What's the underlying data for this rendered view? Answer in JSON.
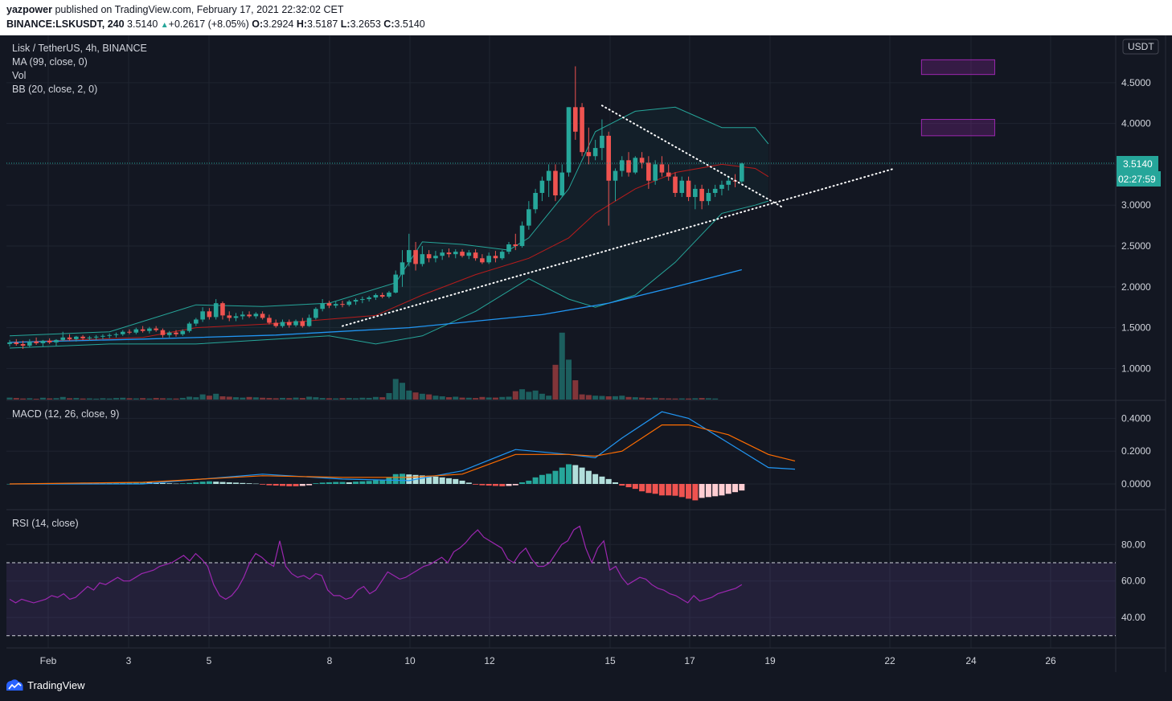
{
  "header": {
    "author": "yazpower",
    "published_text": "published on TradingView.com, February 17, 2021 22:32:02 CET",
    "symbol": "BINANCE:LSKUSDT, 240",
    "last": "3.5140",
    "change": "+0.2617 (+8.05%)",
    "o_label": "O:",
    "o_value": "3.2924",
    "h_label": "H:",
    "h_value": "3.5187",
    "l_label": "L:",
    "l_value": "3.2653",
    "c_label": "C:",
    "c_value": "3.5140"
  },
  "legend": {
    "title": "Lisk / TetherUS, 4h, BINANCE",
    "ma": "MA (99, close, 0)",
    "vol": "Vol",
    "bb": "BB (20, close, 2, 0)",
    "macd": "MACD (12, 26, close, 9)",
    "rsi": "RSI (14, close)"
  },
  "price_scale": {
    "currency": "USDT",
    "ticks": [
      "4.5000",
      "4.0000",
      "3.5000",
      "3.0000",
      "2.5000",
      "2.0000",
      "1.5000",
      "1.0000"
    ],
    "current_price": "3.5140",
    "countdown": "02:27:59"
  },
  "macd_scale": {
    "ticks": [
      "0.4000",
      "0.2000",
      "0.0000"
    ]
  },
  "rsi_scale": {
    "ticks": [
      "80.00",
      "60.00",
      "40.00"
    ]
  },
  "time_axis": {
    "labels": [
      "Feb",
      "3",
      "5",
      "8",
      "10",
      "12",
      "15",
      "17",
      "19",
      "22",
      "24",
      "26"
    ]
  },
  "brand": "TradingView",
  "colors": {
    "up": "#26a69a",
    "down": "#ef5350",
    "ma": "#2196f3",
    "bb": "#26a69a",
    "macd": "#2196f3",
    "signal": "#ff6d00",
    "rsi": "#9c27b0",
    "bg": "#131722"
  },
  "chart_data": {
    "type": "candlestick",
    "symbol": "LSKUSDT",
    "interval": "4h",
    "price_range": [
      0.6,
      5.0
    ],
    "candles": [
      {
        "o": 1.3,
        "h": 1.35,
        "l": 1.27,
        "c": 1.32
      },
      {
        "o": 1.32,
        "h": 1.36,
        "l": 1.28,
        "c": 1.3
      },
      {
        "o": 1.3,
        "h": 1.34,
        "l": 1.24,
        "c": 1.28
      },
      {
        "o": 1.28,
        "h": 1.36,
        "l": 1.26,
        "c": 1.33
      },
      {
        "o": 1.33,
        "h": 1.38,
        "l": 1.29,
        "c": 1.31
      },
      {
        "o": 1.31,
        "h": 1.35,
        "l": 1.27,
        "c": 1.34
      },
      {
        "o": 1.34,
        "h": 1.37,
        "l": 1.3,
        "c": 1.32
      },
      {
        "o": 1.32,
        "h": 1.36,
        "l": 1.28,
        "c": 1.35
      },
      {
        "o": 1.35,
        "h": 1.45,
        "l": 1.33,
        "c": 1.38
      },
      {
        "o": 1.38,
        "h": 1.42,
        "l": 1.34,
        "c": 1.36
      },
      {
        "o": 1.36,
        "h": 1.4,
        "l": 1.33,
        "c": 1.39
      },
      {
        "o": 1.39,
        "h": 1.41,
        "l": 1.35,
        "c": 1.37
      },
      {
        "o": 1.37,
        "h": 1.4,
        "l": 1.34,
        "c": 1.38
      },
      {
        "o": 1.38,
        "h": 1.41,
        "l": 1.35,
        "c": 1.39
      },
      {
        "o": 1.39,
        "h": 1.42,
        "l": 1.36,
        "c": 1.4
      },
      {
        "o": 1.4,
        "h": 1.43,
        "l": 1.37,
        "c": 1.41
      },
      {
        "o": 1.41,
        "h": 1.44,
        "l": 1.38,
        "c": 1.42
      },
      {
        "o": 1.42,
        "h": 1.47,
        "l": 1.4,
        "c": 1.45
      },
      {
        "o": 1.45,
        "h": 1.48,
        "l": 1.42,
        "c": 1.44
      },
      {
        "o": 1.44,
        "h": 1.5,
        "l": 1.42,
        "c": 1.48
      },
      {
        "o": 1.48,
        "h": 1.52,
        "l": 1.44,
        "c": 1.46
      },
      {
        "o": 1.46,
        "h": 1.51,
        "l": 1.43,
        "c": 1.49
      },
      {
        "o": 1.49,
        "h": 1.52,
        "l": 1.45,
        "c": 1.47
      },
      {
        "o": 1.47,
        "h": 1.49,
        "l": 1.38,
        "c": 1.41
      },
      {
        "o": 1.41,
        "h": 1.46,
        "l": 1.38,
        "c": 1.44
      },
      {
        "o": 1.44,
        "h": 1.47,
        "l": 1.39,
        "c": 1.42
      },
      {
        "o": 1.42,
        "h": 1.48,
        "l": 1.4,
        "c": 1.46
      },
      {
        "o": 1.46,
        "h": 1.57,
        "l": 1.44,
        "c": 1.55
      },
      {
        "o": 1.55,
        "h": 1.62,
        "l": 1.52,
        "c": 1.6
      },
      {
        "o": 1.6,
        "h": 1.75,
        "l": 1.57,
        "c": 1.7
      },
      {
        "o": 1.7,
        "h": 1.74,
        "l": 1.6,
        "c": 1.63
      },
      {
        "o": 1.63,
        "h": 1.85,
        "l": 1.6,
        "c": 1.8
      },
      {
        "o": 1.8,
        "h": 1.82,
        "l": 1.6,
        "c": 1.65
      },
      {
        "o": 1.65,
        "h": 1.7,
        "l": 1.58,
        "c": 1.62
      },
      {
        "o": 1.62,
        "h": 1.68,
        "l": 1.58,
        "c": 1.64
      },
      {
        "o": 1.64,
        "h": 1.7,
        "l": 1.6,
        "c": 1.66
      },
      {
        "o": 1.66,
        "h": 1.7,
        "l": 1.62,
        "c": 1.64
      },
      {
        "o": 1.64,
        "h": 1.69,
        "l": 1.61,
        "c": 1.67
      },
      {
        "o": 1.67,
        "h": 1.7,
        "l": 1.6,
        "c": 1.62
      },
      {
        "o": 1.62,
        "h": 1.66,
        "l": 1.54,
        "c": 1.56
      },
      {
        "o": 1.56,
        "h": 1.6,
        "l": 1.5,
        "c": 1.52
      },
      {
        "o": 1.52,
        "h": 1.6,
        "l": 1.5,
        "c": 1.57
      },
      {
        "o": 1.57,
        "h": 1.6,
        "l": 1.5,
        "c": 1.53
      },
      {
        "o": 1.53,
        "h": 1.6,
        "l": 1.51,
        "c": 1.58
      },
      {
        "o": 1.58,
        "h": 1.62,
        "l": 1.5,
        "c": 1.52
      },
      {
        "o": 1.52,
        "h": 1.66,
        "l": 1.51,
        "c": 1.62
      },
      {
        "o": 1.62,
        "h": 1.75,
        "l": 1.6,
        "c": 1.73
      },
      {
        "o": 1.73,
        "h": 1.85,
        "l": 1.7,
        "c": 1.8
      },
      {
        "o": 1.8,
        "h": 1.83,
        "l": 1.74,
        "c": 1.77
      },
      {
        "o": 1.77,
        "h": 1.82,
        "l": 1.74,
        "c": 1.79
      },
      {
        "o": 1.79,
        "h": 1.83,
        "l": 1.75,
        "c": 1.78
      },
      {
        "o": 1.78,
        "h": 1.84,
        "l": 1.76,
        "c": 1.82
      },
      {
        "o": 1.82,
        "h": 1.86,
        "l": 1.78,
        "c": 1.84
      },
      {
        "o": 1.84,
        "h": 1.88,
        "l": 1.8,
        "c": 1.85
      },
      {
        "o": 1.85,
        "h": 1.89,
        "l": 1.82,
        "c": 1.87
      },
      {
        "o": 1.87,
        "h": 1.92,
        "l": 1.84,
        "c": 1.9
      },
      {
        "o": 1.9,
        "h": 1.93,
        "l": 1.86,
        "c": 1.88
      },
      {
        "o": 1.88,
        "h": 1.95,
        "l": 1.86,
        "c": 1.93
      },
      {
        "o": 1.93,
        "h": 2.2,
        "l": 1.92,
        "c": 2.15
      },
      {
        "o": 2.15,
        "h": 2.45,
        "l": 2.0,
        "c": 2.3
      },
      {
        "o": 2.3,
        "h": 2.65,
        "l": 2.25,
        "c": 2.45
      },
      {
        "o": 2.45,
        "h": 2.55,
        "l": 2.2,
        "c": 2.28
      },
      {
        "o": 2.28,
        "h": 2.5,
        "l": 2.25,
        "c": 2.4
      },
      {
        "o": 2.4,
        "h": 2.45,
        "l": 2.3,
        "c": 2.35
      },
      {
        "o": 2.35,
        "h": 2.44,
        "l": 2.3,
        "c": 2.38
      },
      {
        "o": 2.38,
        "h": 2.46,
        "l": 2.33,
        "c": 2.42
      },
      {
        "o": 2.42,
        "h": 2.47,
        "l": 2.36,
        "c": 2.4
      },
      {
        "o": 2.4,
        "h": 2.46,
        "l": 2.35,
        "c": 2.43
      },
      {
        "o": 2.43,
        "h": 2.46,
        "l": 2.36,
        "c": 2.38
      },
      {
        "o": 2.38,
        "h": 2.45,
        "l": 2.34,
        "c": 2.42
      },
      {
        "o": 2.42,
        "h": 2.46,
        "l": 2.32,
        "c": 2.35
      },
      {
        "o": 2.35,
        "h": 2.4,
        "l": 2.28,
        "c": 2.3
      },
      {
        "o": 2.3,
        "h": 2.42,
        "l": 2.28,
        "c": 2.38
      },
      {
        "o": 2.38,
        "h": 2.44,
        "l": 2.3,
        "c": 2.35
      },
      {
        "o": 2.35,
        "h": 2.45,
        "l": 2.33,
        "c": 2.43
      },
      {
        "o": 2.43,
        "h": 2.55,
        "l": 2.4,
        "c": 2.52
      },
      {
        "o": 2.52,
        "h": 2.65,
        "l": 2.45,
        "c": 2.5
      },
      {
        "o": 2.5,
        "h": 2.8,
        "l": 2.48,
        "c": 2.75
      },
      {
        "o": 2.75,
        "h": 3.05,
        "l": 2.7,
        "c": 2.95
      },
      {
        "o": 2.95,
        "h": 3.2,
        "l": 2.9,
        "c": 3.15
      },
      {
        "o": 3.15,
        "h": 3.35,
        "l": 3.05,
        "c": 3.3
      },
      {
        "o": 3.3,
        "h": 3.5,
        "l": 3.1,
        "c": 3.42
      },
      {
        "o": 3.42,
        "h": 3.5,
        "l": 3.05,
        "c": 3.12
      },
      {
        "o": 3.12,
        "h": 3.5,
        "l": 3.1,
        "c": 3.4
      },
      {
        "o": 3.4,
        "h": 4.2,
        "l": 3.35,
        "c": 4.2
      },
      {
        "o": 4.2,
        "h": 4.7,
        "l": 3.8,
        "c": 3.9
      },
      {
        "o": 4.2,
        "h": 4.25,
        "l": 3.6,
        "c": 3.65
      },
      {
        "o": 3.65,
        "h": 3.95,
        "l": 3.5,
        "c": 3.6
      },
      {
        "o": 3.6,
        "h": 3.8,
        "l": 3.55,
        "c": 3.7
      },
      {
        "o": 3.7,
        "h": 4.05,
        "l": 3.55,
        "c": 3.85
      },
      {
        "o": 3.85,
        "h": 3.9,
        "l": 2.75,
        "c": 3.3
      },
      {
        "o": 3.3,
        "h": 3.45,
        "l": 3.05,
        "c": 3.42
      },
      {
        "o": 3.42,
        "h": 3.6,
        "l": 3.35,
        "c": 3.55
      },
      {
        "o": 3.55,
        "h": 3.65,
        "l": 3.35,
        "c": 3.4
      },
      {
        "o": 3.4,
        "h": 3.6,
        "l": 3.38,
        "c": 3.58
      },
      {
        "o": 3.58,
        "h": 3.65,
        "l": 3.45,
        "c": 3.52
      },
      {
        "o": 3.52,
        "h": 3.6,
        "l": 3.2,
        "c": 3.3
      },
      {
        "o": 3.3,
        "h": 3.55,
        "l": 3.25,
        "c": 3.5
      },
      {
        "o": 3.5,
        "h": 3.6,
        "l": 3.35,
        "c": 3.4
      },
      {
        "o": 3.4,
        "h": 3.5,
        "l": 3.3,
        "c": 3.35
      },
      {
        "o": 3.35,
        "h": 3.4,
        "l": 3.1,
        "c": 3.15
      },
      {
        "o": 3.15,
        "h": 3.35,
        "l": 3.1,
        "c": 3.3
      },
      {
        "o": 3.3,
        "h": 3.35,
        "l": 3.05,
        "c": 3.1
      },
      {
        "o": 3.1,
        "h": 3.25,
        "l": 2.95,
        "c": 3.2
      },
      {
        "o": 3.2,
        "h": 3.25,
        "l": 2.95,
        "c": 3.05
      },
      {
        "o": 3.05,
        "h": 3.2,
        "l": 3.0,
        "c": 3.15
      },
      {
        "o": 3.15,
        "h": 3.25,
        "l": 3.1,
        "c": 3.2
      },
      {
        "o": 3.2,
        "h": 3.3,
        "l": 3.12,
        "c": 3.25
      },
      {
        "o": 3.25,
        "h": 3.35,
        "l": 3.18,
        "c": 3.3
      },
      {
        "o": 3.3,
        "h": 3.38,
        "l": 3.22,
        "c": 3.29
      },
      {
        "o": 3.29,
        "h": 3.52,
        "l": 3.27,
        "c": 3.51
      }
    ],
    "volume": [
      15,
      12,
      8,
      10,
      6,
      14,
      9,
      11,
      20,
      10,
      12,
      8,
      9,
      7,
      10,
      8,
      12,
      14,
      10,
      9,
      11,
      8,
      12,
      10,
      9,
      8,
      13,
      22,
      18,
      40,
      30,
      45,
      25,
      22,
      18,
      15,
      20,
      17,
      14,
      12,
      10,
      13,
      11,
      15,
      12,
      22,
      18,
      12,
      10,
      9,
      11,
      12,
      10,
      14,
      13,
      20,
      18,
      50,
      160,
      130,
      70,
      55,
      45,
      40,
      30,
      25,
      18,
      22,
      15,
      14,
      12,
      20,
      16,
      15,
      20,
      22,
      65,
      80,
      60,
      70,
      45,
      30,
      270,
      520,
      310,
      150,
      40,
      35,
      30,
      28,
      25,
      26,
      30,
      20,
      18,
      15,
      12,
      14,
      10,
      9,
      8,
      9,
      8,
      10,
      12,
      10,
      8
    ],
    "ma99_points": [
      [
        0,
        1.32
      ],
      [
        20,
        1.36
      ],
      [
        40,
        1.41
      ],
      [
        60,
        1.5
      ],
      [
        80,
        1.66
      ],
      [
        90,
        1.8
      ],
      [
        100,
        2.0
      ],
      [
        110,
        2.21
      ]
    ],
    "bb_upper": [
      [
        0,
        1.4
      ],
      [
        15,
        1.45
      ],
      [
        28,
        1.78
      ],
      [
        38,
        1.76
      ],
      [
        48,
        1.8
      ],
      [
        58,
        2.05
      ],
      [
        62,
        2.55
      ],
      [
        68,
        2.52
      ],
      [
        75,
        2.45
      ],
      [
        78,
        2.6
      ],
      [
        84,
        3.2
      ],
      [
        88,
        3.9
      ],
      [
        94,
        4.15
      ],
      [
        100,
        4.2
      ],
      [
        107,
        3.95
      ],
      [
        112,
        3.95
      ],
      [
        114,
        3.75
      ]
    ],
    "bb_lower": [
      [
        0,
        1.25
      ],
      [
        15,
        1.3
      ],
      [
        28,
        1.3
      ],
      [
        38,
        1.35
      ],
      [
        48,
        1.4
      ],
      [
        55,
        1.3
      ],
      [
        62,
        1.4
      ],
      [
        70,
        1.7
      ],
      [
        78,
        2.1
      ],
      [
        84,
        1.85
      ],
      [
        88,
        1.75
      ],
      [
        94,
        1.9
      ],
      [
        100,
        2.3
      ],
      [
        107,
        2.9
      ],
      [
        112,
        3.0
      ],
      [
        114,
        3.05
      ]
    ],
    "bb_basis": [
      [
        0,
        1.32
      ],
      [
        20,
        1.38
      ],
      [
        28,
        1.5
      ],
      [
        40,
        1.55
      ],
      [
        55,
        1.65
      ],
      [
        62,
        1.9
      ],
      [
        70,
        2.15
      ],
      [
        78,
        2.35
      ],
      [
        84,
        2.6
      ],
      [
        88,
        2.9
      ],
      [
        94,
        3.2
      ],
      [
        100,
        3.4
      ],
      [
        107,
        3.5
      ],
      [
        112,
        3.45
      ],
      [
        114,
        3.35
      ]
    ],
    "trendline_support": [
      [
        50,
        1.52
      ],
      [
        133,
        3.45
      ]
    ],
    "trendline_resistance": [
      [
        89,
        4.22
      ],
      [
        116,
        2.98
      ]
    ],
    "rectangles": [
      {
        "x0": 137,
        "x1": 148,
        "y0": 4.6,
        "y1": 4.78
      },
      {
        "x0": 137,
        "x1": 148,
        "y0": 3.85,
        "y1": 4.05
      }
    ],
    "macd_line": [
      [
        0,
        0.0
      ],
      [
        20,
        0.0
      ],
      [
        38,
        0.06
      ],
      [
        50,
        0.03
      ],
      [
        60,
        0.02
      ],
      [
        68,
        0.08
      ],
      [
        76,
        0.21
      ],
      [
        84,
        0.18
      ],
      [
        88,
        0.16
      ],
      [
        92,
        0.28
      ],
      [
        98,
        0.44
      ],
      [
        102,
        0.4
      ],
      [
        108,
        0.25
      ],
      [
        114,
        0.1
      ],
      [
        118,
        0.09
      ]
    ],
    "signal_line": [
      [
        0,
        0.0
      ],
      [
        20,
        0.01
      ],
      [
        38,
        0.05
      ],
      [
        50,
        0.04
      ],
      [
        60,
        0.04
      ],
      [
        68,
        0.06
      ],
      [
        76,
        0.18
      ],
      [
        84,
        0.18
      ],
      [
        88,
        0.17
      ],
      [
        92,
        0.2
      ],
      [
        98,
        0.36
      ],
      [
        102,
        0.36
      ],
      [
        108,
        0.3
      ],
      [
        114,
        0.18
      ],
      [
        118,
        0.14
      ]
    ],
    "macd_hist": [
      0,
      0,
      0,
      0,
      0,
      0,
      0,
      0,
      0,
      0.004,
      0.006,
      0.008,
      0.006,
      0.004,
      0.005,
      0.006,
      0.008,
      0.01,
      0.01,
      0.012,
      0.012,
      0.01,
      0.008,
      0.006,
      0.004,
      0.002,
      0.004,
      0.006,
      0.01,
      0.014,
      0.016,
      0.014,
      0.012,
      0.01,
      0.008,
      0.006,
      0.004,
      0.002,
      -0.004,
      -0.008,
      -0.01,
      -0.012,
      -0.014,
      -0.014,
      -0.012,
      -0.008,
      0.004,
      0.008,
      0.01,
      0.012,
      0.012,
      0.01,
      0.014,
      0.016,
      0.018,
      0.022,
      0.026,
      0.04,
      0.06,
      0.062,
      0.058,
      0.055,
      0.052,
      0.05,
      0.045,
      0.04,
      0.035,
      0.03,
      0.02,
      0.008,
      -0.004,
      -0.008,
      -0.01,
      -0.012,
      -0.014,
      -0.012,
      -0.008,
      0.01,
      0.02,
      0.04,
      0.055,
      0.062,
      0.08,
      0.1,
      0.12,
      0.115,
      0.1,
      0.08,
      0.06,
      0.045,
      0.03,
      0.01,
      -0.01,
      -0.02,
      -0.03,
      -0.045,
      -0.055,
      -0.06,
      -0.07,
      -0.07,
      -0.072,
      -0.08,
      -0.09,
      -0.1,
      -0.085,
      -0.08,
      -0.075,
      -0.07,
      -0.06,
      -0.05,
      -0.04
    ],
    "rsi": [
      50,
      48,
      50,
      49,
      48,
      49,
      50,
      52,
      51,
      53,
      50,
      51,
      54,
      57,
      55,
      59,
      58,
      60,
      62,
      60,
      60,
      62,
      64,
      65,
      66,
      68,
      69,
      70,
      72,
      74,
      71,
      75,
      72,
      68,
      58,
      52,
      50,
      52,
      56,
      62,
      70,
      75,
      73,
      70,
      68,
      82,
      68,
      64,
      62,
      63,
      61,
      64,
      63,
      55,
      52,
      52,
      50,
      51,
      55,
      57,
      53,
      55,
      60,
      65,
      63,
      61,
      62,
      64,
      66,
      68,
      69,
      71,
      73,
      70,
      76,
      78,
      81,
      85,
      88,
      84,
      82,
      80,
      78,
      72,
      70,
      75,
      78,
      72,
      68,
      68,
      70,
      75,
      80,
      82,
      88,
      90,
      78,
      70,
      78,
      82,
      66,
      68,
      62,
      58,
      60,
      62,
      61,
      58,
      56,
      55,
      53,
      52,
      50,
      48,
      52,
      49,
      50,
      51,
      53,
      54,
      55,
      56,
      58
    ]
  }
}
